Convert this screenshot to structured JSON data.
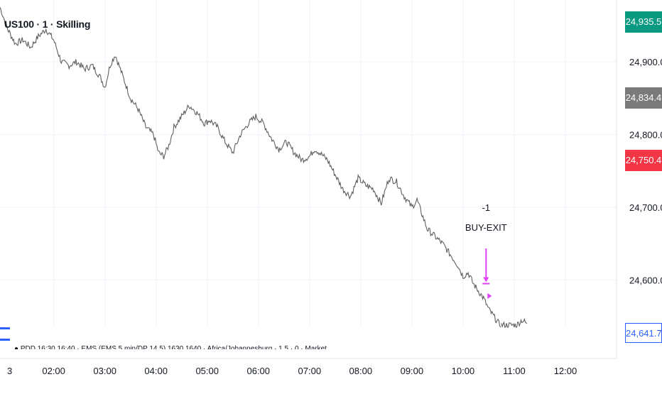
{
  "symbol_title": "US100 · 1 · Skilling",
  "price_badges": {
    "last": "24,935.5",
    "mid": "24,834.4",
    "red": "24,750.4",
    "blue": "24,641.7"
  },
  "colors": {
    "price_line": "#5f5f5f",
    "grid": "#f0f3fa",
    "marker": "#e040fb",
    "badge_green": "#089981",
    "badge_gray": "#7a7a7a",
    "badge_red": "#f23645",
    "badge_blue": "#2962ff"
  },
  "trade_annotation": {
    "qty": "-1",
    "label": "BUY-EXIT",
    "time": "10:30",
    "price": 24595
  },
  "footer_text": "● PDD 16:30 16:40 · EMS (EMS 5 min/DP 14.5) 1630 1640 · Africa/Johannesburg · 1.5 · 0 · Market",
  "chart_data": {
    "type": "line",
    "title": "US100 · 1 · Skilling",
    "xlabel": "",
    "ylabel": "",
    "x_tick_labels": [
      "3",
      "02:00",
      "03:00",
      "04:00",
      "05:00",
      "06:00",
      "07:00",
      "08:00",
      "09:00",
      "10:00",
      "11:00",
      "12:00"
    ],
    "x_tick_hours": [
      1.0,
      2.0,
      3.0,
      4.0,
      5.0,
      6.0,
      7.0,
      8.0,
      9.0,
      10.0,
      11.0,
      12.0
    ],
    "y_tick_labels": [
      "24,900.0",
      "24,800.0",
      "24,700.0",
      "24,600.0"
    ],
    "y_tick_values": [
      24900,
      24800,
      24700,
      24600
    ],
    "xlim_hours": [
      0.95,
      13.0
    ],
    "ylim": [
      24535,
      24985
    ],
    "grid": true,
    "series": [
      {
        "name": "",
        "x_hours": [
          0.95,
          1.1,
          1.25,
          1.4,
          1.55,
          1.7,
          1.85,
          2.0,
          2.15,
          2.3,
          2.45,
          2.6,
          2.75,
          2.9,
          3.0,
          3.1,
          3.2,
          3.35,
          3.5,
          3.65,
          3.8,
          3.95,
          4.05,
          4.15,
          4.25,
          4.35,
          4.5,
          4.65,
          4.8,
          4.95,
          5.05,
          5.2,
          5.35,
          5.5,
          5.65,
          5.8,
          5.95,
          6.1,
          6.25,
          6.4,
          6.55,
          6.7,
          6.85,
          7.0,
          7.1,
          7.2,
          7.35,
          7.5,
          7.65,
          7.8,
          7.95,
          8.1,
          8.25,
          8.4,
          8.55,
          8.7,
          8.85,
          9.0,
          9.1,
          9.2,
          9.3,
          9.45,
          9.6,
          9.75,
          9.9,
          10.0,
          10.1,
          10.2,
          10.3,
          10.4,
          10.5,
          10.6,
          10.65,
          10.7,
          10.75,
          11.05,
          11.15,
          11.25
        ],
        "values": [
          24975,
          24945,
          24925,
          24930,
          24920,
          24935,
          24945,
          24930,
          24900,
          24895,
          24900,
          24890,
          24895,
          24880,
          24865,
          24895,
          24910,
          24880,
          24850,
          24835,
          24810,
          24800,
          24775,
          24770,
          24785,
          24810,
          24825,
          24840,
          24830,
          24815,
          24820,
          24810,
          24790,
          24775,
          24800,
          24815,
          24825,
          24815,
          24795,
          24780,
          24790,
          24775,
          24765,
          24770,
          24780,
          24775,
          24765,
          24745,
          24725,
          24715,
          24740,
          24730,
          24725,
          24705,
          24740,
          24735,
          24715,
          24700,
          24710,
          24690,
          24670,
          24660,
          24650,
          24635,
          24620,
          24605,
          24610,
          24595,
          24585,
          24575,
          24560,
          24550,
          24545,
          24540,
          24538,
          24538,
          24545,
          24540
        ]
      }
    ]
  }
}
